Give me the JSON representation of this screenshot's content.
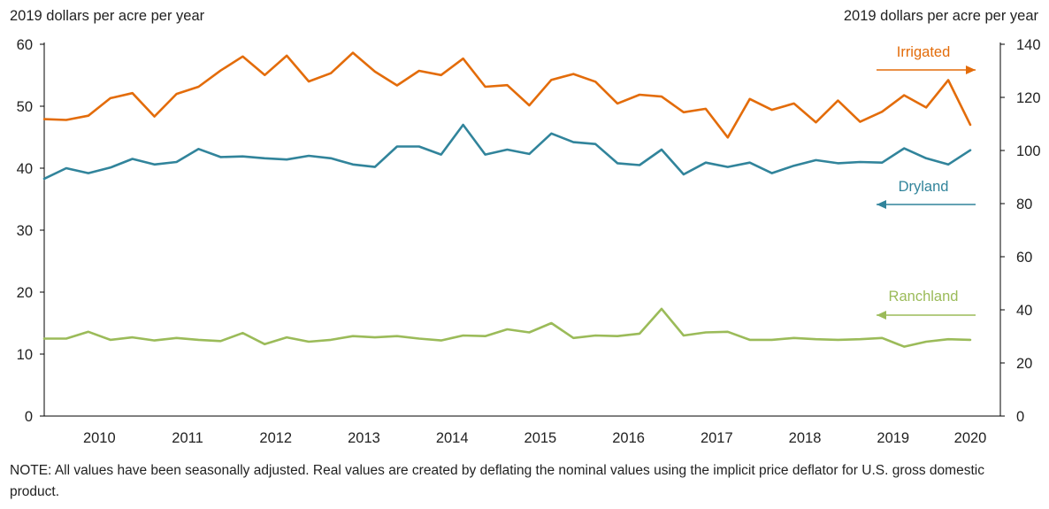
{
  "chart_data": {
    "type": "line",
    "ylabel_left": "2019 dollars per acre per year",
    "ylabel_right": "2019 dollars per acre per year",
    "ylim_left": [
      0,
      60
    ],
    "yticks_left": [
      0,
      10,
      20,
      30,
      40,
      50,
      60
    ],
    "ylim_right": [
      0,
      140
    ],
    "yticks_right": [
      0,
      20,
      40,
      60,
      80,
      100,
      120,
      140
    ],
    "xticks": [
      "2010",
      "2011",
      "2012",
      "2013",
      "2014",
      "2015",
      "2016",
      "2017",
      "2018",
      "2019",
      "2020"
    ],
    "x_note": "quarterly observations, 2009 Q4 to 2020 Q2",
    "grid": false,
    "series": [
      {
        "name": "Irrigated",
        "axis": "right",
        "color": "#e36c0a",
        "arrow": "right",
        "values": [
          111.8,
          111.5,
          113.1,
          119.7,
          121.6,
          112.8,
          121.3,
          124.0,
          130.1,
          135.4,
          128.4,
          135.7,
          126.0,
          129.1,
          136.8,
          129.7,
          124.5,
          130.0,
          128.4,
          134.6,
          124.0,
          124.6,
          117.0,
          126.6,
          128.8,
          125.9,
          117.7,
          121.0,
          120.3,
          114.4,
          115.7,
          104.9,
          119.4,
          115.3,
          117.7,
          110.6,
          118.8,
          110.8,
          114.6,
          120.8,
          116.2,
          126.5,
          109.7
        ]
      },
      {
        "name": "Dryland",
        "axis": "left",
        "color": "#31849b",
        "arrow": "left",
        "values": [
          38.3,
          40.0,
          39.2,
          40.1,
          41.5,
          40.6,
          41.0,
          43.1,
          41.8,
          41.9,
          41.6,
          41.4,
          42.0,
          41.6,
          40.6,
          40.2,
          43.5,
          43.5,
          42.2,
          47.0,
          42.2,
          43.0,
          42.3,
          45.6,
          44.2,
          43.9,
          40.8,
          40.5,
          43.0,
          39.0,
          40.9,
          40.2,
          40.9,
          39.2,
          40.4,
          41.3,
          40.8,
          41.0,
          40.9,
          43.2,
          41.6,
          40.6,
          42.9
        ]
      },
      {
        "name": "Ranchland",
        "axis": "left",
        "color": "#9bbb59",
        "arrow": "left",
        "values": [
          12.5,
          12.5,
          13.6,
          12.3,
          12.7,
          12.2,
          12.6,
          12.3,
          12.1,
          13.4,
          11.6,
          12.7,
          12.0,
          12.3,
          12.9,
          12.7,
          12.9,
          12.5,
          12.2,
          13.0,
          12.9,
          14.0,
          13.5,
          15.0,
          12.6,
          13.0,
          12.9,
          13.3,
          17.3,
          13.0,
          13.5,
          13.6,
          12.3,
          12.3,
          12.6,
          12.4,
          12.3,
          12.4,
          12.6,
          11.2,
          12.0,
          12.4,
          12.3
        ]
      }
    ]
  },
  "note": "NOTE: All values have been seasonally adjusted. Real values are created by deflating the nominal values using the implicit price deflator for U.S. gross domestic product."
}
